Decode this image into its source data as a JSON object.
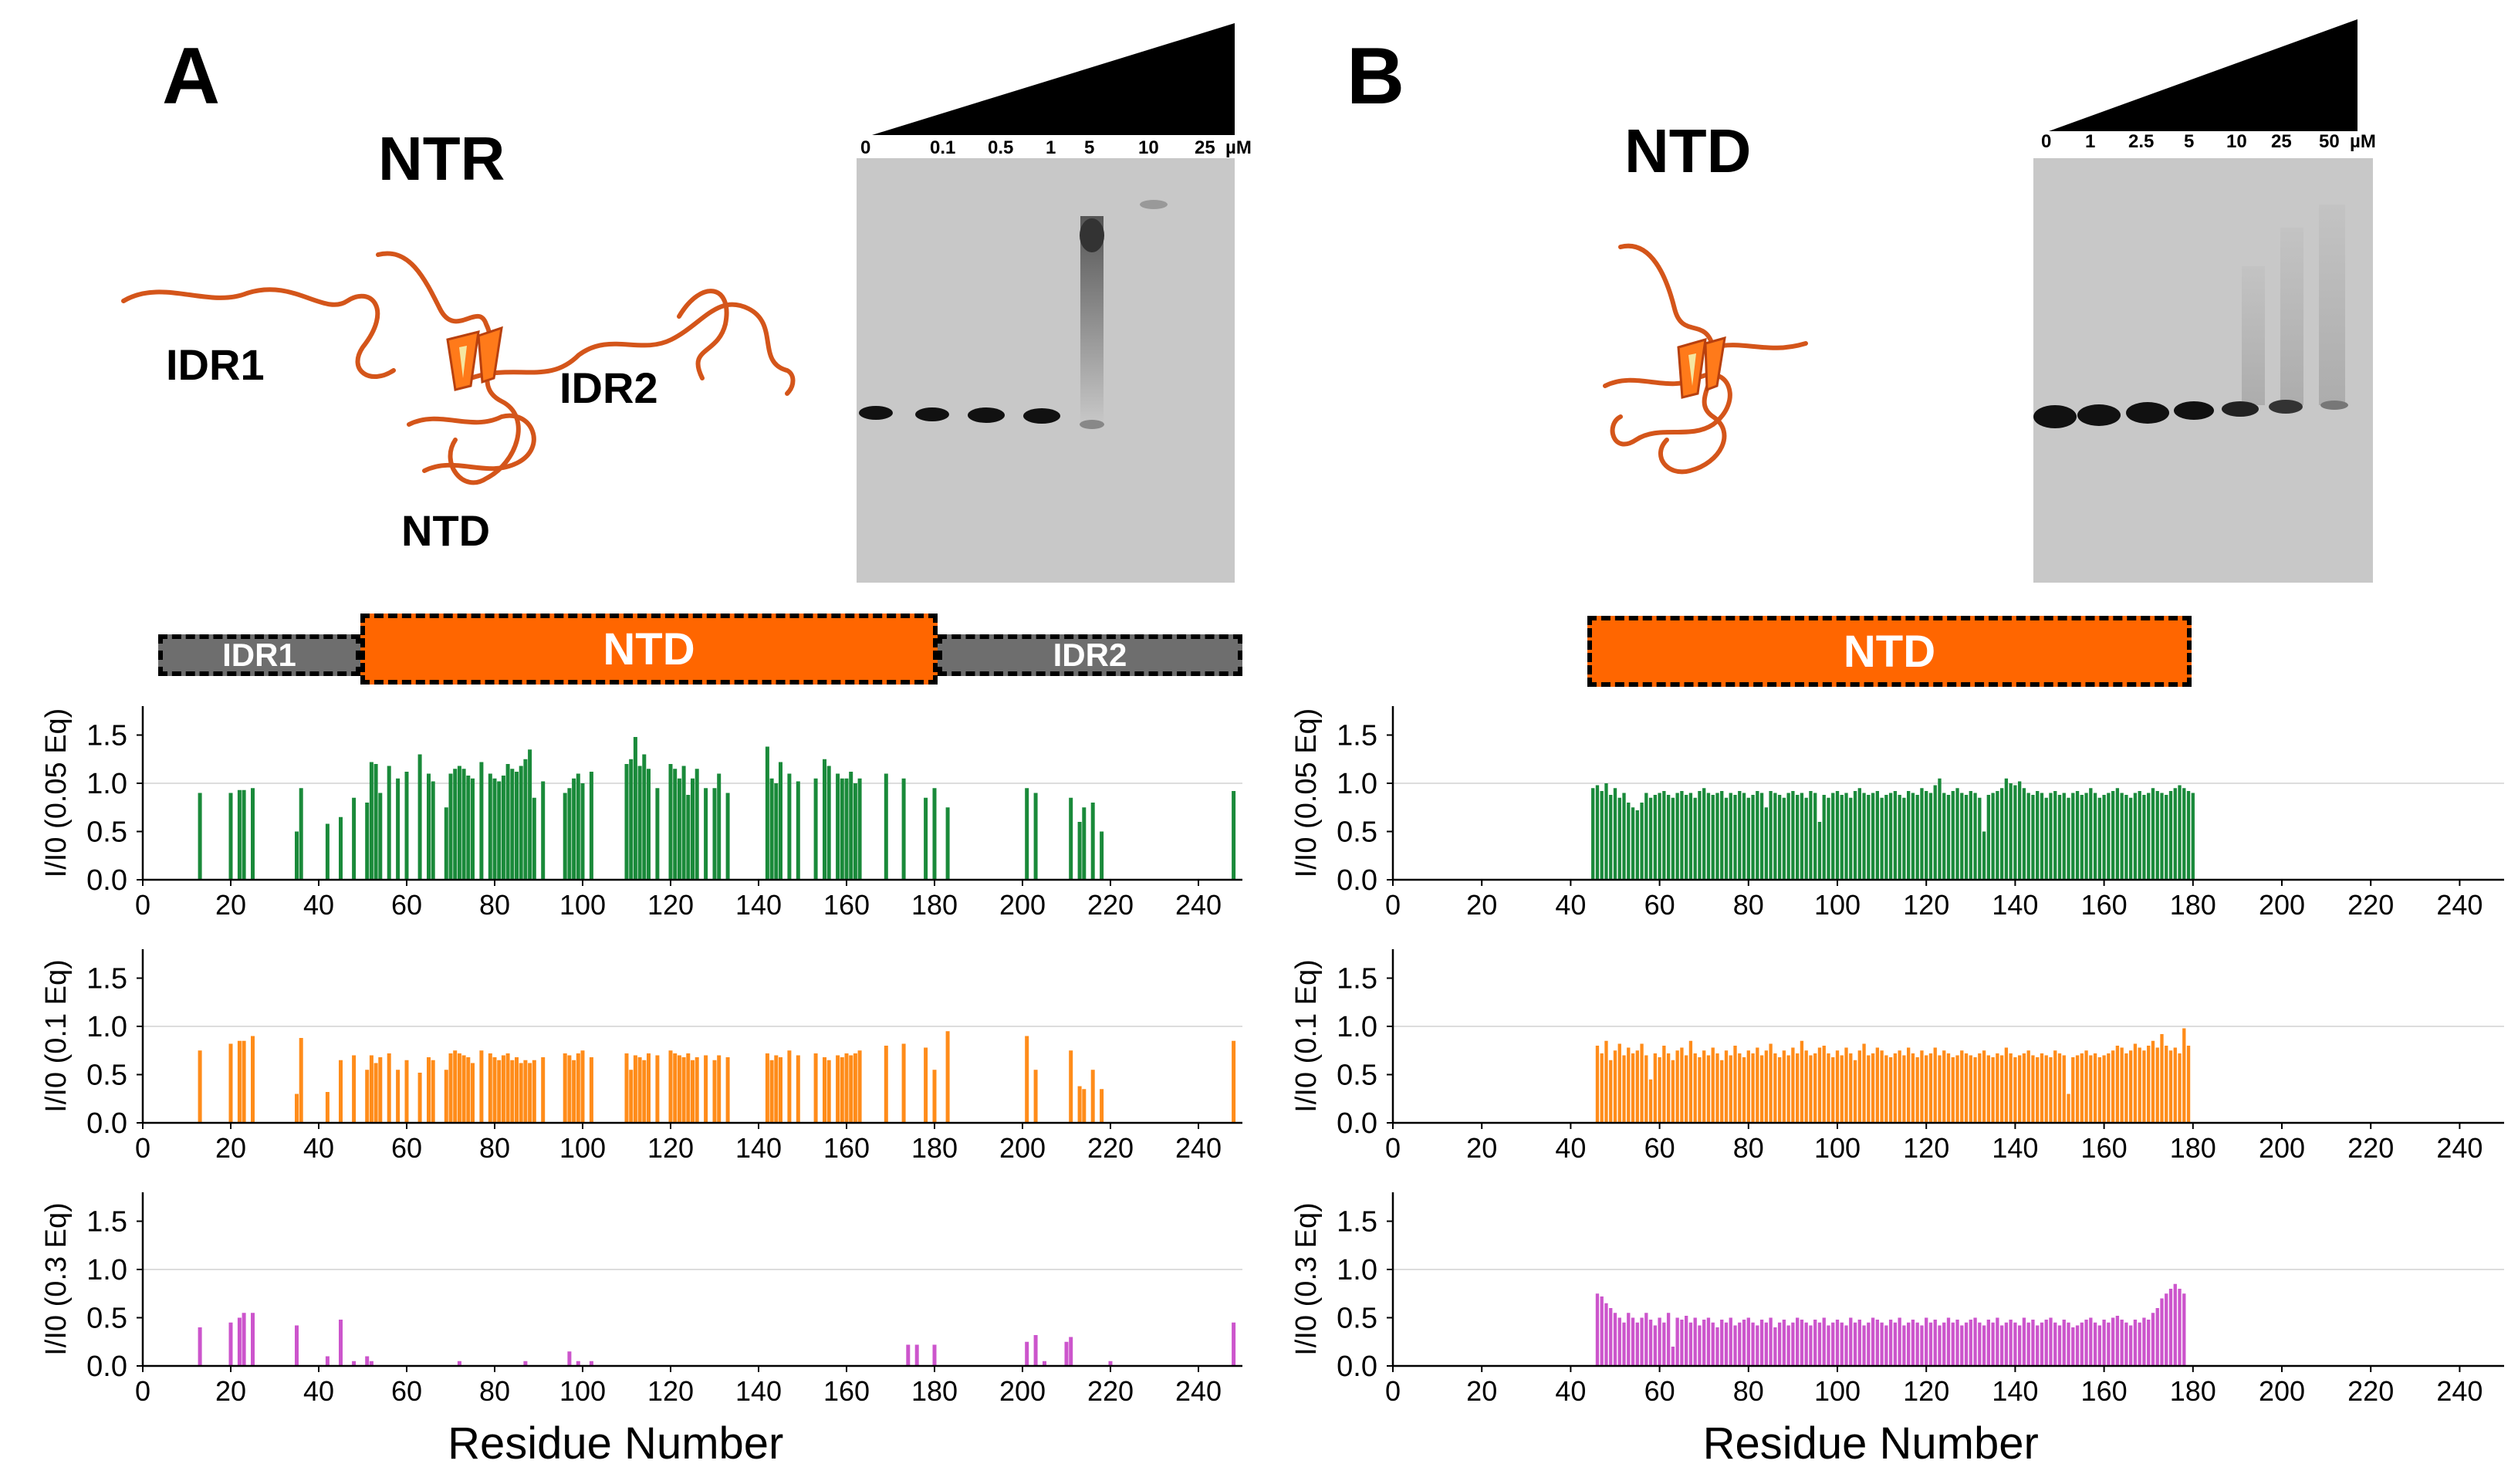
{
  "panels": [
    {
      "letter": "A",
      "structure_title": "NTR",
      "structure_labels": [
        "IDR1",
        "IDR2",
        "NTD"
      ],
      "gel": {
        "lanes": [
          "0",
          "0.1",
          "0.5",
          "1",
          "5",
          "10",
          "25"
        ],
        "unit": "µM"
      },
      "domain_bar": [
        {
          "label": "IDR1",
          "start": 0,
          "end": 45,
          "color": "#6e6e6e"
        },
        {
          "label": "NTD",
          "start": 45,
          "end": 175,
          "color": "#ff6600"
        },
        {
          "label": "IDR2",
          "start": 175,
          "end": 250,
          "color": "#6e6e6e"
        }
      ]
    },
    {
      "letter": "B",
      "structure_title": "NTD",
      "structure_labels": [],
      "gel": {
        "lanes": [
          "0",
          "1",
          "2.5",
          "5",
          "10",
          "25",
          "50"
        ],
        "unit": "µM"
      },
      "domain_bar": [
        {
          "label": "NTD",
          "start": 44,
          "end": 180,
          "color": "#ff6600"
        }
      ]
    }
  ],
  "chart_data": [
    {
      "type": "bar",
      "panel": "A",
      "ylabel": "I/I0 (0.05 Eq)",
      "xlabel": "",
      "xlim": [
        0,
        250
      ],
      "ylim": [
        0,
        1.8
      ],
      "yticks": [
        0.0,
        0.5,
        1.0,
        1.5
      ],
      "ytick_labels": [
        "0.0",
        "0.5",
        "1.0",
        "1.5"
      ],
      "xticks": [
        0,
        20,
        40,
        60,
        80,
        100,
        120,
        140,
        160,
        180,
        200,
        220,
        240
      ],
      "color": "#1a8a3a",
      "x": [
        13,
        20,
        22,
        23,
        25,
        35,
        36,
        42,
        45,
        48,
        51,
        52,
        53,
        54,
        56,
        58,
        60,
        63,
        65,
        66,
        69,
        70,
        71,
        72,
        73,
        74,
        75,
        77,
        79,
        80,
        81,
        82,
        83,
        84,
        85,
        86,
        87,
        88,
        89,
        91,
        96,
        97,
        98,
        99,
        100,
        102,
        110,
        111,
        112,
        113,
        114,
        115,
        117,
        120,
        121,
        122,
        123,
        124,
        125,
        126,
        128,
        130,
        131,
        133,
        142,
        143,
        144,
        145,
        147,
        149,
        153,
        155,
        156,
        158,
        159,
        160,
        161,
        162,
        163,
        169,
        173,
        178,
        180,
        183,
        201,
        203,
        211,
        213,
        214,
        216,
        218,
        248
      ],
      "y": [
        0.9,
        0.9,
        0.93,
        0.93,
        0.95,
        0.5,
        0.95,
        0.58,
        0.65,
        0.85,
        0.8,
        1.22,
        1.2,
        0.9,
        1.18,
        1.05,
        1.12,
        1.3,
        1.1,
        1.02,
        0.75,
        1.1,
        1.15,
        1.18,
        1.15,
        1.08,
        1.05,
        1.22,
        1.1,
        1.05,
        1.02,
        1.08,
        1.2,
        1.15,
        1.12,
        1.18,
        1.25,
        1.35,
        0.85,
        1.02,
        0.9,
        0.95,
        1.05,
        1.1,
        1.0,
        1.12,
        1.2,
        1.25,
        1.48,
        1.18,
        1.3,
        1.15,
        0.95,
        1.2,
        1.15,
        1.05,
        1.18,
        0.88,
        1.05,
        1.15,
        0.95,
        0.95,
        1.1,
        0.9,
        1.38,
        1.05,
        1.0,
        1.22,
        1.1,
        1.02,
        1.05,
        1.25,
        1.18,
        1.1,
        1.05,
        1.05,
        1.12,
        1.0,
        1.05,
        1.1,
        1.05,
        0.85,
        0.95,
        0.75,
        0.95,
        0.9,
        0.85,
        0.6,
        0.75,
        0.8,
        0.5,
        0.92
      ],
      "sparse": true
    },
    {
      "type": "bar",
      "panel": "A",
      "ylabel": "I/I0 (0.1 Eq)",
      "xlabel": "",
      "xlim": [
        0,
        250
      ],
      "ylim": [
        0,
        1.8
      ],
      "yticks": [
        0.0,
        0.5,
        1.0,
        1.5
      ],
      "ytick_labels": [
        "0.0",
        "0.5",
        "1.0",
        "1.5"
      ],
      "xticks": [
        0,
        20,
        40,
        60,
        80,
        100,
        120,
        140,
        160,
        180,
        200,
        220,
        240
      ],
      "color": "#ff8c1a",
      "x": [
        13,
        20,
        22,
        23,
        25,
        35,
        36,
        42,
        45,
        48,
        51,
        52,
        53,
        54,
        56,
        58,
        60,
        63,
        65,
        66,
        69,
        70,
        71,
        72,
        73,
        74,
        75,
        77,
        79,
        80,
        81,
        82,
        83,
        84,
        85,
        86,
        87,
        88,
        89,
        91,
        96,
        97,
        98,
        99,
        100,
        102,
        110,
        111,
        112,
        113,
        114,
        115,
        117,
        120,
        121,
        122,
        123,
        124,
        125,
        126,
        128,
        130,
        131,
        133,
        142,
        143,
        144,
        145,
        147,
        149,
        153,
        155,
        156,
        158,
        159,
        160,
        161,
        162,
        163,
        169,
        173,
        178,
        180,
        183,
        201,
        203,
        211,
        213,
        214,
        216,
        218,
        248
      ],
      "y": [
        0.75,
        0.82,
        0.85,
        0.85,
        0.9,
        0.3,
        0.88,
        0.32,
        0.65,
        0.7,
        0.55,
        0.7,
        0.62,
        0.68,
        0.72,
        0.55,
        0.65,
        0.52,
        0.68,
        0.65,
        0.55,
        0.72,
        0.75,
        0.72,
        0.7,
        0.68,
        0.62,
        0.75,
        0.72,
        0.68,
        0.65,
        0.7,
        0.72,
        0.65,
        0.68,
        0.62,
        0.65,
        0.62,
        0.65,
        0.68,
        0.72,
        0.7,
        0.65,
        0.72,
        0.75,
        0.68,
        0.72,
        0.55,
        0.7,
        0.68,
        0.65,
        0.72,
        0.7,
        0.75,
        0.72,
        0.7,
        0.68,
        0.72,
        0.65,
        0.68,
        0.7,
        0.65,
        0.7,
        0.68,
        0.72,
        0.65,
        0.7,
        0.68,
        0.75,
        0.7,
        0.72,
        0.68,
        0.65,
        0.7,
        0.68,
        0.72,
        0.7,
        0.72,
        0.75,
        0.8,
        0.82,
        0.78,
        0.55,
        0.95,
        0.9,
        0.55,
        0.75,
        0.38,
        0.35,
        0.55,
        0.35,
        0.85
      ],
      "sparse": true
    },
    {
      "type": "bar",
      "panel": "A",
      "ylabel": "I/I0 (0.3 Eq)",
      "xlabel": "Residue Number",
      "xlim": [
        0,
        250
      ],
      "ylim": [
        0,
        1.8
      ],
      "yticks": [
        0.0,
        0.5,
        1.0,
        1.5
      ],
      "ytick_labels": [
        "0.0",
        "0.5",
        "1.0",
        "1.5"
      ],
      "xticks": [
        0,
        20,
        40,
        60,
        80,
        100,
        120,
        140,
        160,
        180,
        200,
        220,
        240
      ],
      "color": "#cc55cc",
      "x": [
        13,
        20,
        22,
        23,
        25,
        35,
        42,
        45,
        48,
        51,
        52,
        72,
        87,
        97,
        99,
        102,
        174,
        176,
        180,
        201,
        203,
        205,
        210,
        211,
        220,
        248
      ],
      "y": [
        0.4,
        0.45,
        0.5,
        0.55,
        0.55,
        0.42,
        0.1,
        0.48,
        0.05,
        0.1,
        0.05,
        0.05,
        0.05,
        0.15,
        0.05,
        0.05,
        0.22,
        0.22,
        0.22,
        0.25,
        0.32,
        0.05,
        0.25,
        0.3,
        0.05,
        0.45
      ],
      "sparse": true
    },
    {
      "type": "bar",
      "panel": "B",
      "ylabel": "I/I0 (0.05 Eq)",
      "xlabel": "",
      "xlim": [
        0,
        250
      ],
      "ylim": [
        0,
        1.8
      ],
      "yticks": [
        0.0,
        0.5,
        1.0,
        1.5
      ],
      "ytick_labels": [
        "0.0",
        "0.5",
        "1.0",
        "1.5"
      ],
      "xticks": [
        0,
        20,
        40,
        60,
        80,
        100,
        120,
        140,
        160,
        180,
        200,
        220,
        240
      ],
      "color": "#1a8a3a",
      "x_start": 45,
      "x_end": 180,
      "y": [
        0.95,
        0.98,
        0.92,
        1.0,
        0.88,
        0.95,
        0.85,
        0.9,
        0.8,
        0.75,
        0.72,
        0.8,
        0.9,
        0.85,
        0.88,
        0.9,
        0.92,
        0.88,
        0.85,
        0.9,
        0.92,
        0.88,
        0.9,
        0.85,
        0.92,
        0.95,
        0.9,
        0.88,
        0.9,
        0.92,
        0.85,
        0.9,
        0.88,
        0.92,
        0.9,
        0.85,
        0.88,
        0.92,
        0.9,
        0.75,
        0.92,
        0.9,
        0.88,
        0.85,
        0.9,
        0.92,
        0.88,
        0.9,
        0.85,
        0.92,
        0.9,
        0.6,
        0.88,
        0.85,
        0.9,
        0.92,
        0.88,
        0.9,
        0.85,
        0.92,
        0.95,
        0.9,
        0.88,
        0.9,
        0.92,
        0.85,
        0.88,
        0.9,
        0.92,
        0.88,
        0.85,
        0.92,
        0.9,
        0.88,
        0.95,
        0.92,
        0.9,
        0.98,
        1.05,
        0.9,
        0.88,
        0.92,
        0.95,
        0.9,
        0.88,
        0.92,
        0.9,
        0.85,
        0.5,
        0.88,
        0.9,
        0.92,
        0.95,
        1.05,
        1.0,
        0.98,
        1.02,
        0.95,
        0.9,
        0.88,
        0.92,
        0.9,
        0.85,
        0.9,
        0.92,
        0.88,
        0.9,
        0.85,
        0.9,
        0.92,
        0.88,
        0.9,
        0.95,
        0.9,
        0.85,
        0.88,
        0.9,
        0.92,
        0.95,
        0.9,
        0.88,
        0.85,
        0.9,
        0.92,
        0.88,
        0.9,
        0.95,
        0.92,
        0.9,
        0.88,
        0.92,
        0.95,
        0.98,
        0.95,
        0.92,
        0.9
      ]
    },
    {
      "type": "bar",
      "panel": "B",
      "ylabel": "I/I0 (0.1 Eq)",
      "xlabel": "",
      "xlim": [
        0,
        250
      ],
      "ylim": [
        0,
        1.8
      ],
      "yticks": [
        0.0,
        0.5,
        1.0,
        1.5
      ],
      "ytick_labels": [
        "0.0",
        "0.5",
        "1.0",
        "1.5"
      ],
      "xticks": [
        0,
        20,
        40,
        60,
        80,
        100,
        120,
        140,
        160,
        180,
        200,
        220,
        240
      ],
      "color": "#ff8c1a",
      "x_start": 46,
      "x_end": 180,
      "y": [
        0.8,
        0.72,
        0.85,
        0.65,
        0.75,
        0.82,
        0.7,
        0.78,
        0.72,
        0.75,
        0.82,
        0.7,
        0.45,
        0.72,
        0.68,
        0.8,
        0.72,
        0.65,
        0.75,
        0.78,
        0.7,
        0.85,
        0.72,
        0.68,
        0.75,
        0.7,
        0.78,
        0.72,
        0.65,
        0.75,
        0.7,
        0.8,
        0.72,
        0.68,
        0.75,
        0.72,
        0.78,
        0.7,
        0.75,
        0.82,
        0.72,
        0.68,
        0.75,
        0.7,
        0.78,
        0.72,
        0.85,
        0.75,
        0.7,
        0.72,
        0.78,
        0.8,
        0.72,
        0.68,
        0.75,
        0.7,
        0.78,
        0.72,
        0.65,
        0.75,
        0.82,
        0.7,
        0.72,
        0.78,
        0.75,
        0.7,
        0.68,
        0.72,
        0.75,
        0.7,
        0.78,
        0.72,
        0.68,
        0.75,
        0.7,
        0.72,
        0.78,
        0.7,
        0.75,
        0.72,
        0.68,
        0.7,
        0.75,
        0.72,
        0.7,
        0.68,
        0.72,
        0.75,
        0.7,
        0.68,
        0.72,
        0.7,
        0.78,
        0.72,
        0.68,
        0.7,
        0.72,
        0.75,
        0.7,
        0.68,
        0.72,
        0.7,
        0.68,
        0.75,
        0.72,
        0.7,
        0.3,
        0.68,
        0.7,
        0.72,
        0.75,
        0.7,
        0.72,
        0.68,
        0.7,
        0.72,
        0.75,
        0.8,
        0.78,
        0.72,
        0.75,
        0.82,
        0.78,
        0.75,
        0.8,
        0.85,
        0.78,
        0.92,
        0.8,
        0.75,
        0.78,
        0.72,
        0.98,
        0.8
      ]
    },
    {
      "type": "bar",
      "panel": "B",
      "ylabel": "I/I0 (0.3 Eq)",
      "xlabel": "Residue Number",
      "xlim": [
        0,
        250
      ],
      "ylim": [
        0,
        1.8
      ],
      "yticks": [
        0.0,
        0.5,
        1.0,
        1.5
      ],
      "ytick_labels": [
        "0.0",
        "0.5",
        "1.0",
        "1.5"
      ],
      "xticks": [
        0,
        20,
        40,
        60,
        80,
        100,
        120,
        140,
        160,
        180,
        200,
        220,
        240
      ],
      "color": "#cc55cc",
      "x_start": 46,
      "x_end": 180,
      "y": [
        0.75,
        0.72,
        0.65,
        0.6,
        0.55,
        0.5,
        0.45,
        0.55,
        0.5,
        0.45,
        0.5,
        0.55,
        0.48,
        0.42,
        0.5,
        0.45,
        0.55,
        0.2,
        0.5,
        0.48,
        0.52,
        0.45,
        0.5,
        0.42,
        0.48,
        0.5,
        0.45,
        0.4,
        0.48,
        0.45,
        0.5,
        0.42,
        0.45,
        0.48,
        0.5,
        0.45,
        0.42,
        0.48,
        0.45,
        0.5,
        0.4,
        0.45,
        0.48,
        0.42,
        0.45,
        0.5,
        0.48,
        0.45,
        0.42,
        0.48,
        0.45,
        0.5,
        0.42,
        0.45,
        0.48,
        0.45,
        0.42,
        0.5,
        0.45,
        0.48,
        0.42,
        0.45,
        0.5,
        0.48,
        0.45,
        0.42,
        0.48,
        0.45,
        0.5,
        0.42,
        0.45,
        0.48,
        0.45,
        0.42,
        0.5,
        0.45,
        0.48,
        0.42,
        0.45,
        0.5,
        0.45,
        0.48,
        0.42,
        0.45,
        0.48,
        0.5,
        0.45,
        0.42,
        0.48,
        0.45,
        0.5,
        0.42,
        0.45,
        0.48,
        0.45,
        0.42,
        0.5,
        0.45,
        0.48,
        0.42,
        0.45,
        0.48,
        0.5,
        0.45,
        0.42,
        0.48,
        0.45,
        0.4,
        0.42,
        0.45,
        0.48,
        0.5,
        0.45,
        0.42,
        0.48,
        0.45,
        0.5,
        0.52,
        0.48,
        0.45,
        0.42,
        0.48,
        0.45,
        0.5,
        0.48,
        0.55,
        0.6,
        0.7,
        0.75,
        0.8,
        0.85,
        0.8,
        0.75
      ]
    }
  ]
}
